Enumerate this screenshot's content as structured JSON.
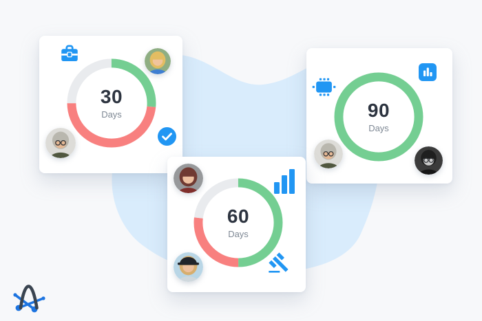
{
  "colors": {
    "accent_blue": "#2196f3",
    "progress_green": "#74ce92",
    "progress_red": "#f8807f",
    "progress_track": "#e9ebee",
    "number_text": "#2d3440",
    "label_text": "#7e8894",
    "page_bg": "#f7f8fa",
    "blob": "#d9ecfc",
    "card_bg": "#ffffff",
    "logo_arc": "#3a4450",
    "logo_node": "#1d74e0"
  },
  "chart_data": [
    {
      "type": "pie",
      "subtype": "donut",
      "title": "30 Days",
      "center_value": "30",
      "center_label": "Days",
      "segments": [
        {
          "name": "green",
          "color": "#74ce92",
          "pct": 26.5
        },
        {
          "name": "red",
          "color": "#f8807f",
          "pct": 48.5
        },
        {
          "name": "track",
          "color": "#e9ebee",
          "pct": 25
        }
      ]
    },
    {
      "type": "pie",
      "subtype": "donut",
      "title": "60 Days",
      "center_value": "60",
      "center_label": "Days",
      "segments": [
        {
          "name": "green",
          "color": "#74ce92",
          "pct": 50
        },
        {
          "name": "red",
          "color": "#f8807f",
          "pct": 27
        },
        {
          "name": "track",
          "color": "#e9ebee",
          "pct": 23
        }
      ]
    },
    {
      "type": "pie",
      "subtype": "donut",
      "title": "90 Days",
      "center_value": "90",
      "center_label": "Days",
      "segments": [
        {
          "name": "green",
          "color": "#74ce92",
          "pct": 100
        }
      ]
    }
  ],
  "cards": [
    {
      "title": "30 Days",
      "icons": [
        "briefcase-icon",
        "check-circle-icon"
      ],
      "avatars": [
        "blonde_woman",
        "gray_haired_man"
      ]
    },
    {
      "title": "60 Days",
      "icons": [
        "bar-chart-icon",
        "gavel-icon"
      ],
      "avatars": [
        "redhead_woman",
        "hat_woman"
      ]
    },
    {
      "title": "90 Days",
      "icons": [
        "cpu-chip-icon",
        "bar-chart-square-icon"
      ],
      "avatars": [
        "gray_haired_man",
        "bw_man"
      ]
    }
  ],
  "avatars": {
    "blonde_woman": {
      "bg": "#8fae83",
      "hair": "#e3bd62",
      "skin": "#f1c49c",
      "shirt": "#3e7ed2",
      "long": true
    },
    "gray_haired_man": {
      "bg": "#dddcd8",
      "hair": "#b9b7ae",
      "skin": "#e5b894",
      "shirt": "#50573f",
      "glasses": true
    },
    "redhead_woman": {
      "bg": "#97999b",
      "hair": "#703a32",
      "skin": "#eec0a0",
      "shirt": "#802f2c",
      "long": true
    },
    "hat_woman": {
      "bg": "#b9d6e6",
      "hair": "#d7ae6e",
      "skin": "#edc09e",
      "shirt": "#cfd8dd",
      "long": true,
      "hat": true
    },
    "bw_man": {
      "bg": "#3b3b3b",
      "hair": "#1f1f1f",
      "skin": "#c9c9c9",
      "shirt": "#151515",
      "glasses": true
    }
  }
}
